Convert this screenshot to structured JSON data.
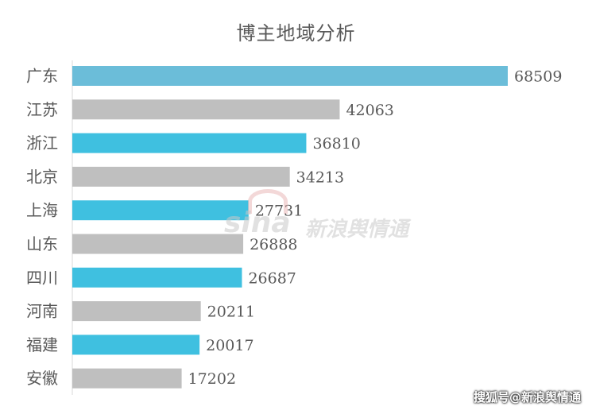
{
  "chart_data": {
    "type": "bar",
    "orientation": "horizontal",
    "title": "博主地域分析",
    "categories": [
      "广东",
      "江苏",
      "浙江",
      "北京",
      "上海",
      "山东",
      "四川",
      "河南",
      "福建",
      "安徽"
    ],
    "values": [
      68509,
      42063,
      36810,
      34213,
      27731,
      26888,
      26687,
      20211,
      20017,
      17202
    ],
    "data_labels": [
      "68509",
      "42063",
      "36810",
      "34213",
      "27731",
      "26888",
      "26687",
      "20211",
      "20017",
      "17202"
    ],
    "bar_colors": [
      "#6bbdd9",
      "#bfbfbf",
      "#3fc0e0",
      "#bfbfbf",
      "#3fc0e0",
      "#bfbfbf",
      "#3fc0e0",
      "#bfbfbf",
      "#3fc0e0",
      "#bfbfbf"
    ],
    "xlim": [
      0,
      68509
    ],
    "grid": false,
    "legend": "none"
  },
  "watermark": {
    "logo": "sina",
    "text": "新浪舆情通"
  },
  "footer": {
    "text": "搜狐号@新浪舆情通"
  }
}
